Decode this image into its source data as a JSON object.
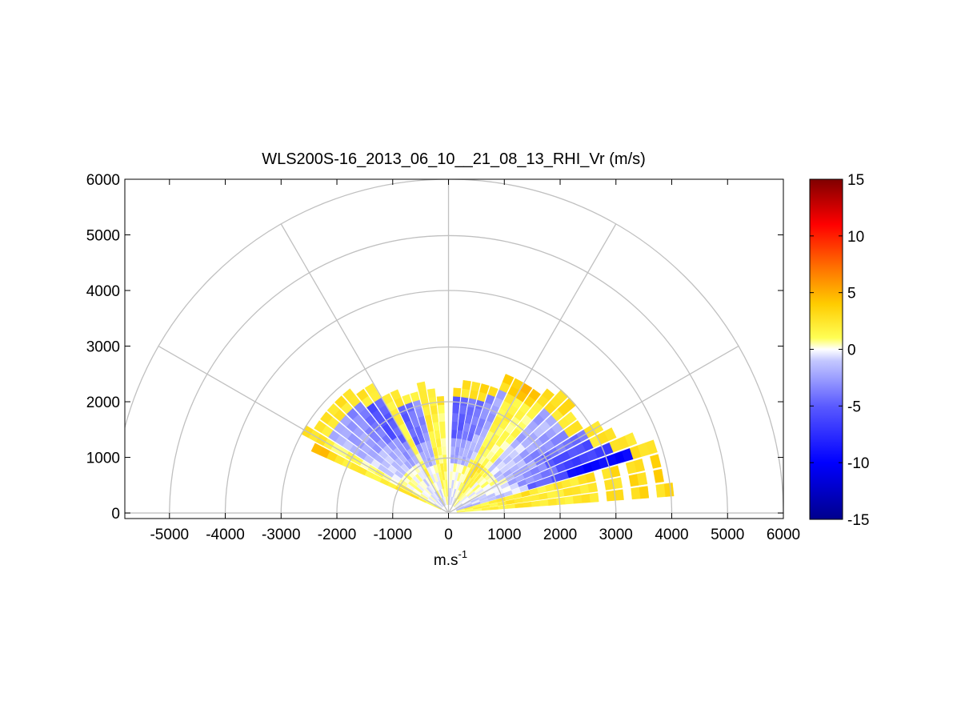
{
  "chart_data": {
    "type": "heatmap",
    "title": "WLS200S-16_2013_06_10__21_08_13_RHI_Vr (m/s)",
    "xlabel": "m.s",
    "xlabel_superscript": "-1",
    "ylabel": "",
    "xlim": [
      -5800,
      6000
    ],
    "ylim": [
      -100,
      6000
    ],
    "xticks": [
      -5000,
      -4000,
      -3000,
      -2000,
      -1000,
      0,
      1000,
      2000,
      3000,
      4000,
      5000,
      6000
    ],
    "yticks": [
      0,
      1000,
      2000,
      3000,
      4000,
      5000,
      6000
    ],
    "polar_grid": {
      "range_rings": [
        1000,
        2000,
        3000,
        4000,
        5000,
        6000
      ],
      "spokes_deg": [
        0,
        30,
        60,
        90,
        120,
        150,
        180
      ]
    },
    "colorbar": {
      "min": -15,
      "max": 15,
      "ticks": [
        15,
        10,
        5,
        0,
        -5,
        -10,
        -15
      ],
      "stops": [
        {
          "v": -15,
          "c": "#00008c"
        },
        {
          "v": -10,
          "c": "#0000ff"
        },
        {
          "v": -5,
          "c": "#5a5aff"
        },
        {
          "v": -1,
          "c": "#c4c8ff"
        },
        {
          "v": 0,
          "c": "#ffffff"
        },
        {
          "v": 1,
          "c": "#ffff55"
        },
        {
          "v": 4,
          "c": "#ffcc00"
        },
        {
          "v": 7,
          "c": "#ff7700"
        },
        {
          "v": 11,
          "c": "#ff0000"
        },
        {
          "v": 15,
          "c": "#800000"
        }
      ]
    },
    "rays": [
      {
        "elev_deg": 6.0,
        "max_range": 4300,
        "base_vr": 2.5,
        "peak_vr": 3.0
      },
      {
        "elev_deg": 10.0,
        "max_range": 4000,
        "base_vr": 2.5,
        "peak_vr": 3.0
      },
      {
        "elev_deg": 14.0,
        "max_range": 3900,
        "base_vr": 2.5,
        "peak_vr": 3.0
      },
      {
        "elev_deg": 18.0,
        "max_range": 4000,
        "base_vr": -6.0,
        "peak_vr": 2.5
      },
      {
        "elev_deg": 22.0,
        "max_range": 3600,
        "base_vr": -4.0,
        "peak_vr": 2.0
      },
      {
        "elev_deg": 26.0,
        "max_range": 3300,
        "base_vr": -3.5,
        "peak_vr": 2.0
      },
      {
        "elev_deg": 30.0,
        "max_range": 3200,
        "base_vr": -2.5,
        "peak_vr": 2.0
      },
      {
        "elev_deg": 34.0,
        "max_range": 2900,
        "base_vr": -2.0,
        "peak_vr": 2.0
      },
      {
        "elev_deg": 38.0,
        "max_range": 2900,
        "base_vr": -1.5,
        "peak_vr": 2.0
      },
      {
        "elev_deg": 42.0,
        "max_range": 3000,
        "base_vr": -1.0,
        "peak_vr": 2.5
      },
      {
        "elev_deg": 46.0,
        "max_range": 3000,
        "base_vr": -1.5,
        "peak_vr": 2.5
      },
      {
        "elev_deg": 50.0,
        "max_range": 2900,
        "base_vr": 1.0,
        "peak_vr": 3.0
      },
      {
        "elev_deg": 54.0,
        "max_range": 2800,
        "base_vr": 1.0,
        "peak_vr": 4.0
      },
      {
        "elev_deg": 58.0,
        "max_range": 2800,
        "base_vr": 1.5,
        "peak_vr": 4.0
      },
      {
        "elev_deg": 62.0,
        "max_range": 2700,
        "base_vr": 1.5,
        "peak_vr": 3.5
      },
      {
        "elev_deg": 66.0,
        "max_range": 2700,
        "base_vr": -1.5,
        "peak_vr": 3.0
      },
      {
        "elev_deg": 70.0,
        "max_range": 2500,
        "base_vr": -2.0,
        "peak_vr": 3.0
      },
      {
        "elev_deg": 74.0,
        "max_range": 2400,
        "base_vr": -2.5,
        "peak_vr": 2.5
      },
      {
        "elev_deg": 78.0,
        "max_range": 2400,
        "base_vr": -2.5,
        "peak_vr": 2.5
      },
      {
        "elev_deg": 82.0,
        "max_range": 2400,
        "base_vr": -3.0,
        "peak_vr": 2.5
      },
      {
        "elev_deg": 86.0,
        "max_range": 2350,
        "base_vr": -3.0,
        "peak_vr": 2.5
      },
      {
        "elev_deg": 94.0,
        "max_range": 2200,
        "base_vr": 1.0,
        "peak_vr": 2.0
      },
      {
        "elev_deg": 98.0,
        "max_range": 2300,
        "base_vr": 1.5,
        "peak_vr": 2.0
      },
      {
        "elev_deg": 102.0,
        "max_range": 2400,
        "base_vr": 2.0,
        "peak_vr": 1.5
      },
      {
        "elev_deg": 106.0,
        "max_range": 2300,
        "base_vr": -2.0,
        "peak_vr": 1.5
      },
      {
        "elev_deg": 110.0,
        "max_range": 2300,
        "base_vr": -2.5,
        "peak_vr": 1.5
      },
      {
        "elev_deg": 114.0,
        "max_range": 2400,
        "base_vr": -3.0,
        "peak_vr": 2.0
      },
      {
        "elev_deg": 118.0,
        "max_range": 2500,
        "base_vr": 1.5,
        "peak_vr": 2.0
      },
      {
        "elev_deg": 122.0,
        "max_range": 2700,
        "base_vr": -3.0,
        "peak_vr": 2.0
      },
      {
        "elev_deg": 126.0,
        "max_range": 2800,
        "base_vr": -3.5,
        "peak_vr": 2.0
      },
      {
        "elev_deg": 130.0,
        "max_range": 2900,
        "base_vr": -2.5,
        "peak_vr": 2.5
      },
      {
        "elev_deg": 134.0,
        "max_range": 2900,
        "base_vr": -2.0,
        "peak_vr": 2.0
      },
      {
        "elev_deg": 138.0,
        "max_range": 2900,
        "base_vr": -1.5,
        "peak_vr": 2.0
      },
      {
        "elev_deg": 142.0,
        "max_range": 2900,
        "base_vr": -1.5,
        "peak_vr": 2.5
      },
      {
        "elev_deg": 146.0,
        "max_range": 2900,
        "base_vr": -1.0,
        "peak_vr": 1.5
      },
      {
        "elev_deg": 150.0,
        "max_range": 3000,
        "base_vr": 1.0,
        "peak_vr": 2.5
      },
      {
        "elev_deg": 154.0,
        "max_range": 2700,
        "base_vr": 2.0,
        "peak_vr": 4.5
      }
    ],
    "range_gate_m": 150
  }
}
